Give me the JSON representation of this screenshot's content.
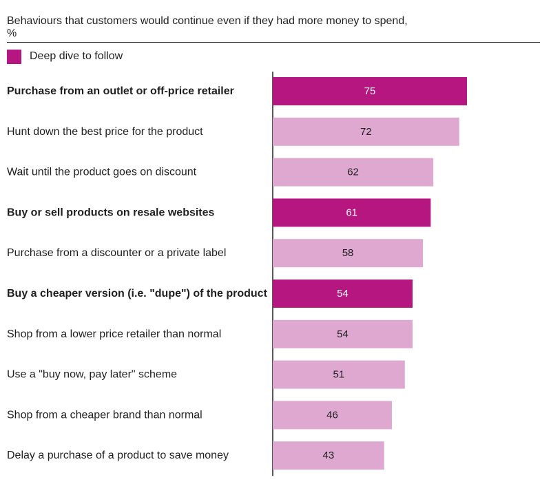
{
  "header": {
    "title": "Behaviours that customers would continue even if they had more money to spend,",
    "unit": "%"
  },
  "legend": {
    "label": "Deep dive to follow",
    "color": "#b51680"
  },
  "chart_data": {
    "type": "bar",
    "orientation": "horizontal",
    "categories": [
      "Purchase from an outlet or off-price retailer",
      "Hunt down the best price for the product",
      "Wait until the product goes on discount",
      "Buy or sell products on resale websites",
      "Purchase from a discounter or a private label",
      "Buy a cheaper version (i.e. \"dupe\") of the product",
      "Shop from a lower price retailer than normal",
      "Use a \"buy now, pay later\" scheme",
      "Shop from a cheaper brand than normal",
      "Delay a purchase of a product to save money"
    ],
    "values": [
      75,
      72,
      62,
      61,
      58,
      54,
      54,
      51,
      46,
      43
    ],
    "highlighted": [
      true,
      false,
      false,
      true,
      false,
      true,
      false,
      false,
      false,
      false
    ],
    "xlim": [
      0,
      100
    ],
    "grid": false,
    "legend_position": "top-left",
    "colors": {
      "highlight": "#b51680",
      "normal": "#dfa8d0",
      "highlight_label": "#ffffff",
      "normal_label": "#1f1f1f",
      "axis": "#1f1f1f"
    }
  }
}
